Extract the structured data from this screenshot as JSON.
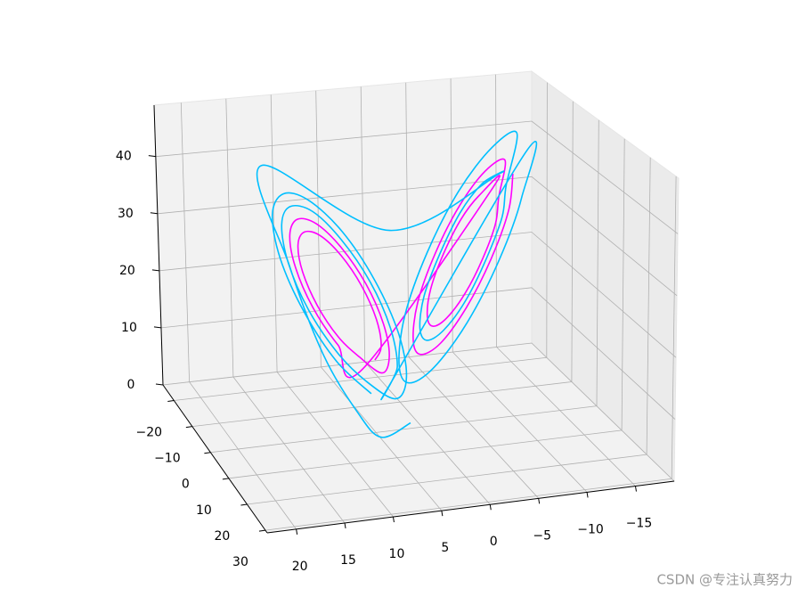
{
  "chart_data": {
    "type": "line3d",
    "xlim": [
      -19,
      23
    ],
    "ylim": [
      -26,
      31
    ],
    "zlim": [
      0,
      49
    ],
    "xticks": [
      {
        "value": -15,
        "label": "−15"
      },
      {
        "value": -10,
        "label": "−10"
      },
      {
        "value": -5,
        "label": "−5"
      },
      0,
      5,
      10,
      15,
      20
    ],
    "yticks": [
      {
        "value": -20,
        "label": "−20"
      },
      {
        "value": -10,
        "label": "−10"
      },
      0,
      10,
      20,
      30
    ],
    "zticks": [
      0,
      10,
      20,
      30,
      40
    ],
    "grid": true,
    "series": [
      {
        "color": "#ff00ff",
        "x": [
          7.5,
          6.4,
          6.4,
          7.5,
          9.4,
          11.6,
          13.5,
          14.6,
          14.6,
          13.5,
          11.6,
          9.4,
          6.9,
          5.6,
          5.6,
          6.9,
          9.2,
          11.8,
          14.1,
          15.4,
          15.4,
          14.1,
          11.8,
          9.2,
          -8.6,
          -7.2,
          -5.1,
          -2.9,
          -1.1,
          -0.3,
          -0.6,
          -2,
          -4.1,
          -6.3,
          -8.1,
          -8.9,
          -10.2,
          -8.2,
          -5.3,
          -2.2,
          0.3,
          1.4,
          1,
          -1,
          -3.9,
          -7,
          -9.5,
          -10.6
        ],
        "y": [
          11,
          9.1,
          6.9,
          5,
          3.9,
          3.9,
          5,
          6.9,
          9.1,
          11,
          12.1,
          12.1,
          11.6,
          9.3,
          6.7,
          4.4,
          3.1,
          3.1,
          4.4,
          6.7,
          9.3,
          11.6,
          12.9,
          12.9,
          -3.3,
          -3.7,
          -3.3,
          -2,
          -0.3,
          1.5,
          2.7,
          3.1,
          2.7,
          1.4,
          -0.3,
          -2.1,
          -4.5,
          -5.1,
          -4.5,
          -2.7,
          -0.3,
          2.2,
          3.9,
          4.5,
          3.9,
          2.1,
          -0.3,
          -2.8
        ],
        "z": [
          17,
          18.3,
          22,
          27,
          32,
          35.7,
          37,
          35.7,
          32,
          27,
          22,
          18.3,
          15,
          16.6,
          21,
          27,
          33,
          37.4,
          39,
          37.4,
          33,
          27,
          21,
          16.6,
          38,
          36.7,
          33,
          28,
          23,
          19.3,
          18,
          19.3,
          23,
          28,
          33,
          36.7,
          42,
          40.2,
          35,
          28,
          21,
          15.8,
          14,
          15.8,
          21,
          28,
          35,
          40.2
        ]
      },
      {
        "color": "#00bfff",
        "x": [
          4,
          8,
          10.5,
          14,
          17.4,
          17.5,
          4,
          -9.4,
          -7.7,
          -5.2,
          -2.6,
          -0.4,
          0.6,
          0.2,
          -1.5,
          -4,
          -6.6,
          -8.8,
          -9.8,
          -11.8,
          -9.3,
          -5.5,
          -1.5,
          1.7,
          3.1,
          2.6,
          0.1,
          -3.7,
          -7.7,
          -10.9,
          -12.3,
          6.3,
          4.8,
          4.8,
          6.3,
          9,
          12,
          14.7,
          16.2,
          16.2,
          14.7,
          12,
          9,
          5.7,
          3.9,
          3.9,
          5.7,
          8.7,
          12.3,
          15.3,
          17.1,
          17.1,
          15.3,
          12.3,
          8.7
        ],
        "y": [
          12,
          16,
          16,
          16,
          16,
          3,
          3,
          -3.9,
          -4.4,
          -3.9,
          -2.3,
          -0.3,
          1.9,
          3.3,
          3.8,
          3.3,
          1.7,
          -0.3,
          -2.5,
          -5.7,
          -6.4,
          -5.7,
          -3.4,
          -0.3,
          2.9,
          5.1,
          5.8,
          5.1,
          2.8,
          -0.3,
          -3.5,
          12.2,
          9.5,
          6.5,
          3.8,
          2.3,
          2.3,
          3.8,
          6.5,
          9.5,
          12.2,
          13.7,
          13.7,
          12.8,
          9.8,
          6.2,
          3.2,
          1.4,
          1.4,
          3.2,
          6.2,
          9.8,
          12.8,
          14.6,
          14.6
        ],
        "z": [
          6.4,
          6.4,
          11,
          21,
          36,
          48,
          35,
          40,
          38.4,
          34,
          28,
          22,
          17.6,
          16,
          17.6,
          22,
          28,
          34,
          38.4,
          46,
          43.7,
          37,
          28,
          19,
          12.3,
          10,
          12.3,
          19,
          28,
          37,
          43.7,
          13,
          14.8,
          20,
          27,
          34,
          39.2,
          41,
          39.2,
          34,
          27,
          20,
          14.8,
          11,
          13.1,
          19,
          27,
          35,
          40.9,
          43,
          40.9,
          35,
          27,
          19,
          13.1
        ]
      }
    ]
  },
  "watermark": "CSDN @专注认真努力"
}
